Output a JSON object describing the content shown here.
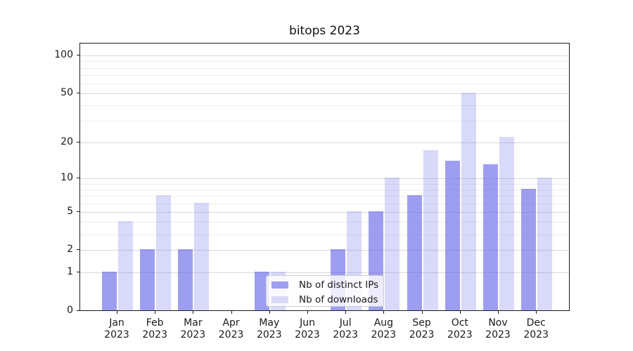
{
  "title": "bitops 2023",
  "chart_data": {
    "type": "bar",
    "title": "bitops 2023",
    "categories": [
      "Jan 2023",
      "Feb 2023",
      "Mar 2023",
      "Apr 2023",
      "May 2023",
      "Jun 2023",
      "Jul 2023",
      "Aug 2023",
      "Sep 2023",
      "Oct 2023",
      "Nov 2023",
      "Dec 2023"
    ],
    "month_labels": [
      "Jan",
      "Feb",
      "Mar",
      "Apr",
      "May",
      "Jun",
      "Jul",
      "Aug",
      "Sep",
      "Oct",
      "Nov",
      "Dec"
    ],
    "year_label": "2023",
    "series": [
      {
        "name": "Nb of distinct IPs",
        "values": [
          1,
          2,
          2,
          0,
          1,
          0,
          2,
          5,
          7,
          14,
          13,
          8
        ],
        "color": "rgba(106,106,232,0.65)",
        "legend_color": "#9e9ef0"
      },
      {
        "name": "Nb of downloads",
        "values": [
          4,
          7,
          6,
          0,
          1,
          0,
          5,
          10,
          17,
          50,
          22,
          10
        ],
        "color": "rgba(128,128,238,0.30)",
        "legend_color": "#d9d9fa"
      }
    ],
    "yscale": "log1p",
    "ylim": [
      0,
      126
    ],
    "yticks": [
      0,
      1,
      2,
      5,
      10,
      20,
      50,
      100
    ],
    "minor_yticks": [
      3,
      4,
      6,
      7,
      8,
      9,
      30,
      40,
      60,
      70,
      80,
      90
    ],
    "grid": true,
    "legend_position": "lower center"
  }
}
